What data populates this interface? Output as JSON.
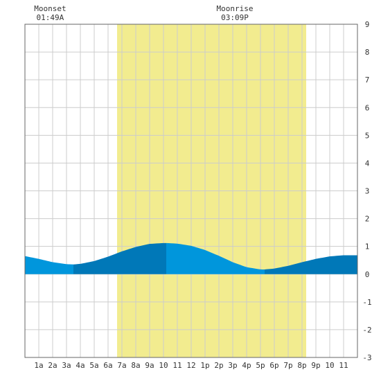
{
  "chart_data": {
    "type": "area",
    "title": "",
    "xlabel": "",
    "ylabel": "",
    "x_tick_labels": [
      "1a",
      "2a",
      "3a",
      "4a",
      "5a",
      "6a",
      "7a",
      "8a",
      "9a",
      "10",
      "11",
      "12",
      "1p",
      "2p",
      "3p",
      "4p",
      "5p",
      "6p",
      "7p",
      "8p",
      "9p",
      "10",
      "11"
    ],
    "x_range_hours": [
      0,
      24
    ],
    "ylim": [
      -3,
      9
    ],
    "y_ticks": [
      -3,
      -2,
      -1,
      0,
      1,
      2,
      3,
      4,
      5,
      6,
      7,
      8,
      9
    ],
    "grid": true,
    "daylight": {
      "start_hour": 6.65,
      "end_hour": 20.3,
      "color": "#f2ec8f"
    },
    "tide": {
      "hours": [
        0,
        1,
        2,
        3,
        3.5,
        4,
        5,
        6,
        7,
        8,
        9,
        10,
        10.2,
        11,
        12,
        13,
        14,
        15,
        16,
        17,
        17.3,
        18,
        19,
        20,
        21,
        22,
        23,
        24
      ],
      "heights": [
        0.65,
        0.55,
        0.43,
        0.36,
        0.35,
        0.37,
        0.47,
        0.63,
        0.82,
        0.98,
        1.09,
        1.12,
        1.12,
        1.1,
        1.02,
        0.87,
        0.66,
        0.43,
        0.25,
        0.17,
        0.17,
        0.2,
        0.3,
        0.43,
        0.55,
        0.64,
        0.68,
        0.68
      ]
    },
    "tide_colors": {
      "rising": "#0078b8",
      "falling": "#0096dc"
    },
    "turning_points_hours": [
      3.5,
      10.2,
      17.3
    ],
    "annotations": [
      {
        "id": "moonset",
        "label": "Moonset",
        "time": "01:49A",
        "hour": 1.82
      },
      {
        "id": "moonrise",
        "label": "Moonrise",
        "time": "03:09P",
        "hour": 15.15
      }
    ]
  }
}
